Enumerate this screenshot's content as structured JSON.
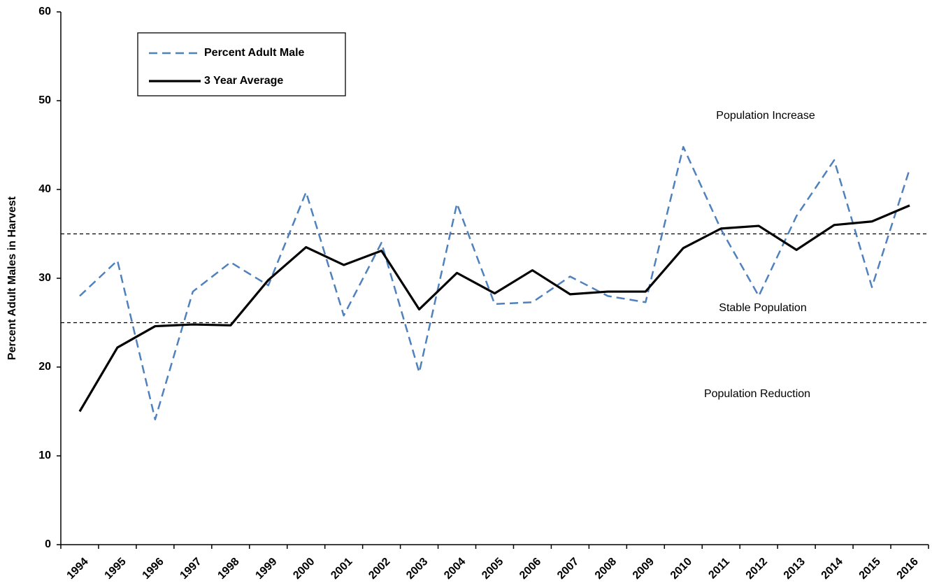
{
  "chart_data": {
    "type": "line",
    "y_label": "Percent Adult Males in Harvest",
    "categories": [
      "1994",
      "1995",
      "1996",
      "1997",
      "1998",
      "1999",
      "2000",
      "2001",
      "2002",
      "2003",
      "2004",
      "2005",
      "2006",
      "2007",
      "2008",
      "2009",
      "2010",
      "2011",
      "2012",
      "2013",
      "2014",
      "2015",
      "2016"
    ],
    "series": [
      {
        "name": "Percent Adult Male",
        "color": "#4f81bd",
        "dashed": true,
        "values": [
          28,
          32,
          14.1,
          28.5,
          31.8,
          29.2,
          39.7,
          25.8,
          34,
          19.4,
          38.4,
          27.1,
          27.3,
          30.2,
          28,
          27.3,
          44.8,
          35.5,
          28,
          37,
          43.3,
          29,
          42.3
        ]
      },
      {
        "name": "3 Year Average",
        "color": "#000000",
        "dashed": false,
        "values": [
          15,
          22.2,
          24.6,
          24.8,
          24.7,
          29.8,
          33.5,
          31.5,
          33.1,
          26.5,
          30.6,
          28.3,
          30.9,
          28.2,
          28.5,
          28.5,
          33.4,
          35.6,
          35.9,
          33.2,
          36,
          36.4,
          38.2
        ]
      }
    ],
    "reference_lines": [
      35,
      25
    ],
    "annotations": [
      "Population Increase",
      "Stable Population",
      "Population Reduction"
    ],
    "ylim": [
      0,
      60
    ],
    "yticks": [
      0,
      10,
      20,
      30,
      40,
      50,
      60
    ],
    "legend": "upper left"
  }
}
